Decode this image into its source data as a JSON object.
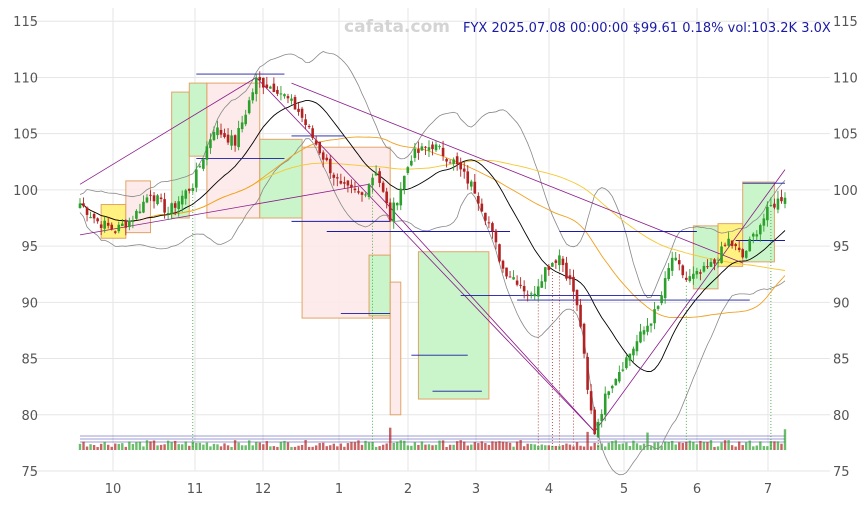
{
  "watermark": "cafata.com",
  "header": {
    "symbol": "FYX",
    "datetime": "2025.07.08 00:00:00",
    "price": "$99.61",
    "change": "0.18%",
    "volume": "vol:103.2K",
    "multiplier": "3.0X"
  },
  "chart_data": {
    "type": "candlestick",
    "x_ticks": [
      "10",
      "11",
      "12",
      "1",
      "2",
      "3",
      "4",
      "5",
      "6",
      "7"
    ],
    "y_ticks": [
      75,
      80,
      85,
      90,
      95,
      100,
      105,
      110,
      115
    ],
    "ylim": [
      75,
      116
    ],
    "colors": {
      "up": "#2ca02c",
      "down": "#b22222",
      "box_up_fill": "#c8f5c8",
      "box_down_fill": "#fde9e9",
      "box_yellow_fill": "#fff27a",
      "box_edge": "#e0a060",
      "ma_short": "#000000",
      "ma_mid": "#f0a020",
      "ma_long": "#f5c830",
      "bands": "#888888",
      "trend": "#8b1a8b",
      "levels": "#1a1aa6"
    },
    "close_path": [
      [
        0,
        98.8
      ],
      [
        5,
        97.2
      ],
      [
        10,
        96.4
      ],
      [
        15,
        97.5
      ],
      [
        20,
        99.8
      ],
      [
        25,
        98.0
      ],
      [
        32,
        100.5
      ],
      [
        38,
        105.5
      ],
      [
        44,
        104.2
      ],
      [
        50,
        109.7
      ],
      [
        56,
        109.0
      ],
      [
        62,
        107.0
      ],
      [
        68,
        103.5
      ],
      [
        74,
        100.2
      ],
      [
        80,
        99.5
      ],
      [
        84,
        101.8
      ],
      [
        88,
        97.5
      ],
      [
        94,
        103.0
      ],
      [
        100,
        104.0
      ],
      [
        106,
        102.5
      ],
      [
        112,
        100.0
      ],
      [
        116,
        97.0
      ],
      [
        120,
        93.0
      ],
      [
        124,
        92.0
      ],
      [
        128,
        90.5
      ],
      [
        132,
        93.0
      ],
      [
        136,
        94.2
      ],
      [
        140,
        91.0
      ],
      [
        142,
        88.0
      ],
      [
        144,
        82.0
      ],
      [
        146,
        78.5
      ],
      [
        150,
        82.5
      ],
      [
        154,
        84.5
      ],
      [
        160,
        87.5
      ],
      [
        164,
        89.5
      ],
      [
        168,
        94.0
      ],
      [
        172,
        92.0
      ],
      [
        176,
        92.5
      ],
      [
        180,
        93.5
      ],
      [
        184,
        95.5
      ],
      [
        188,
        94.0
      ],
      [
        192,
        96.5
      ],
      [
        196,
        98.5
      ],
      [
        200,
        99.6
      ]
    ],
    "boxes": [
      {
        "t0": 6,
        "t1": 13,
        "low": 95.7,
        "high": 98.7,
        "kind": "yellow"
      },
      {
        "t0": 13,
        "t1": 20,
        "low": 96.2,
        "high": 100.8,
        "kind": "down"
      },
      {
        "t0": 26,
        "t1": 31,
        "low": 97.5,
        "high": 108.7,
        "kind": "up"
      },
      {
        "t0": 31,
        "t1": 36,
        "low": 103.0,
        "high": 109.5,
        "kind": "up"
      },
      {
        "t0": 36,
        "t1": 51,
        "low": 97.5,
        "high": 109.5,
        "kind": "down"
      },
      {
        "t0": 51,
        "t1": 63,
        "low": 97.5,
        "high": 104.5,
        "kind": "up"
      },
      {
        "t0": 63,
        "t1": 88,
        "low": 88.6,
        "high": 103.8,
        "kind": "down"
      },
      {
        "t0": 82,
        "t1": 88,
        "low": 88.8,
        "high": 94.2,
        "kind": "up"
      },
      {
        "t0": 88,
        "t1": 91,
        "low": 80.0,
        "high": 91.8,
        "kind": "down"
      },
      {
        "t0": 96,
        "t1": 116,
        "low": 81.4,
        "high": 94.5,
        "kind": "up"
      },
      {
        "t0": 174,
        "t1": 181,
        "low": 91.2,
        "high": 96.8,
        "kind": "up"
      },
      {
        "t0": 181,
        "t1": 188,
        "low": 93.2,
        "high": 97.0,
        "kind": "yellow"
      },
      {
        "t0": 188,
        "t1": 197,
        "low": 93.6,
        "high": 100.7,
        "kind": "up"
      }
    ],
    "levels": [
      {
        "t0": 33,
        "t1": 58,
        "y": 110.3
      },
      {
        "t0": 33,
        "t1": 58,
        "y": 102.8
      },
      {
        "t0": 60,
        "t1": 88,
        "y": 97.2
      },
      {
        "t0": 60,
        "t1": 75,
        "y": 104.8
      },
      {
        "t0": 74,
        "t1": 88,
        "y": 89.0
      },
      {
        "t0": 70,
        "t1": 122,
        "y": 96.3
      },
      {
        "t0": 94,
        "t1": 110,
        "y": 85.3
      },
      {
        "t0": 100,
        "t1": 114,
        "y": 82.1
      },
      {
        "t0": 108,
        "t1": 165,
        "y": 90.6
      },
      {
        "t0": 124,
        "t1": 190,
        "y": 90.2
      },
      {
        "t0": 136,
        "t1": 175,
        "y": 96.3
      },
      {
        "t0": 186,
        "t1": 200,
        "y": 95.5
      },
      {
        "t0": 188,
        "t1": 200,
        "y": 100.6
      }
    ],
    "trendlines": [
      {
        "t0": 0,
        "y0": 100.5,
        "t1": 50,
        "y1": 110.0
      },
      {
        "t0": 50,
        "y0": 110.0,
        "t1": 146,
        "y1": 78.5
      },
      {
        "t0": 146,
        "y0": 78.5,
        "t1": 200,
        "y1": 101.8
      },
      {
        "t0": 0,
        "y0": 96.0,
        "t1": 82,
        "y1": 100.5
      },
      {
        "t0": 82,
        "y0": 100.5,
        "t1": 146,
        "y1": 78.5
      },
      {
        "t0": 60,
        "y0": 109.5,
        "t1": 188,
        "y1": 93.5
      }
    ],
    "signals": [
      32,
      83,
      130,
      134,
      136,
      140,
      147,
      172,
      196
    ]
  }
}
